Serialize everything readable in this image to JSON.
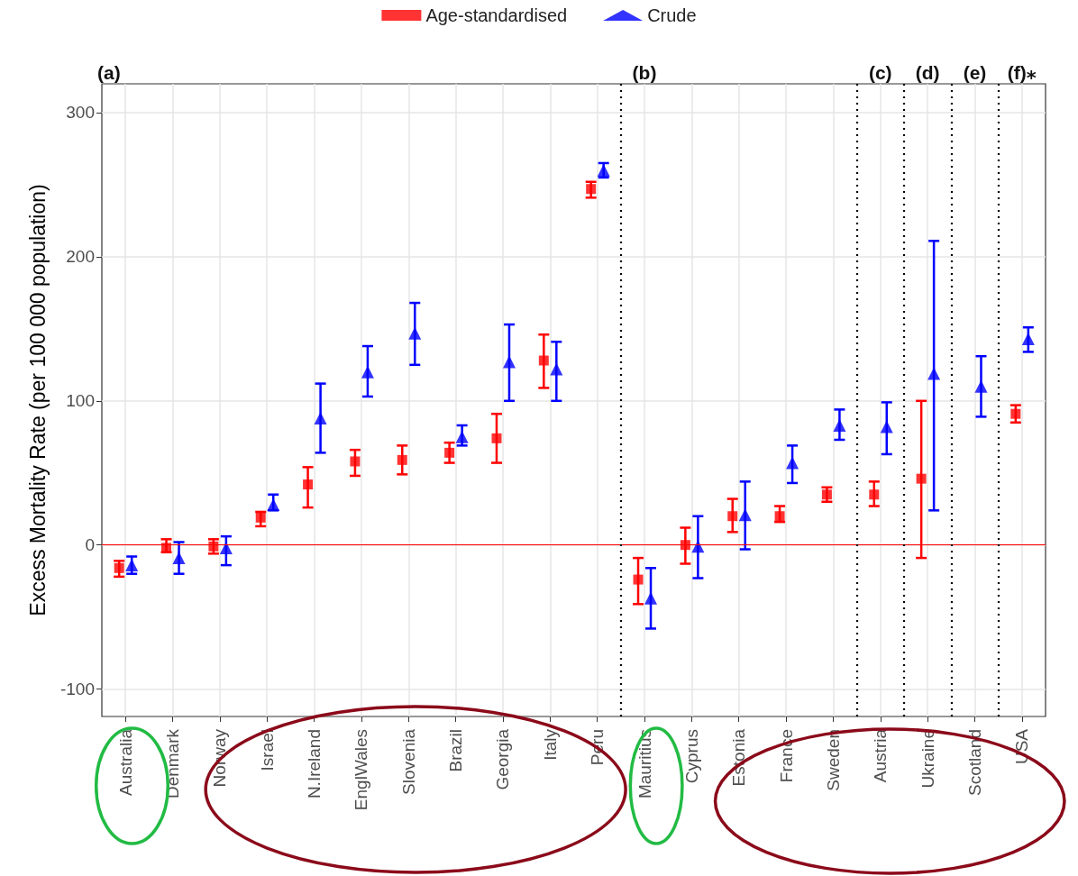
{
  "chart_data": {
    "type": "scatter",
    "ylabel": "Excess Mortality Rate (per 100 000 population)",
    "categories": [
      "Australia",
      "Denmark",
      "Norway",
      "Israel",
      "N.Ireland",
      "EnglWales",
      "Slovenia",
      "Brazil",
      "Georgia",
      "Italy",
      "Peru",
      "Mauritius",
      "Cyprus",
      "Estonia",
      "France",
      "Sweden",
      "Austria",
      "Ukraine",
      "Scotland",
      "USA"
    ],
    "series": [
      {
        "name": "Age-standardised",
        "color": "#ff0000",
        "marker": "square",
        "values": [
          -16,
          -2,
          -1,
          19,
          42,
          58,
          59,
          64,
          74,
          128,
          247,
          -24,
          0,
          20,
          20,
          35,
          35,
          46,
          null,
          91
        ],
        "errors": [
          [
            -22,
            -11
          ],
          [
            -5,
            4
          ],
          [
            -6,
            4
          ],
          [
            13,
            23
          ],
          [
            26,
            54
          ],
          [
            48,
            66
          ],
          [
            49,
            69
          ],
          [
            57,
            71
          ],
          [
            57,
            91
          ],
          [
            109,
            146
          ],
          [
            241,
            252
          ],
          [
            -41,
            -9
          ],
          [
            -13,
            12
          ],
          [
            9,
            32
          ],
          [
            16,
            27
          ],
          [
            30,
            40
          ],
          [
            27,
            44
          ],
          [
            -9,
            100
          ],
          null,
          [
            85,
            97
          ]
        ]
      },
      {
        "name": "Crude",
        "color": "#0000ff",
        "marker": "triangle",
        "values": [
          -14,
          -9,
          -2,
          28,
          88,
          120,
          147,
          75,
          127,
          122,
          260,
          -37,
          -1,
          21,
          57,
          83,
          82,
          119,
          110,
          143
        ],
        "errors": [
          [
            -20,
            -8
          ],
          [
            -20,
            2
          ],
          [
            -14,
            6
          ],
          [
            24,
            35
          ],
          [
            64,
            112
          ],
          [
            103,
            138
          ],
          [
            125,
            168
          ],
          [
            69,
            83
          ],
          [
            100,
            153
          ],
          [
            100,
            141
          ],
          [
            255,
            265
          ],
          [
            -58,
            -16
          ],
          [
            -23,
            20
          ],
          [
            -3,
            44
          ],
          [
            43,
            69
          ],
          [
            73,
            94
          ],
          [
            63,
            99
          ],
          [
            24,
            211
          ],
          [
            89,
            131
          ],
          [
            134,
            151
          ]
        ]
      }
    ],
    "ylim": [
      -119,
      320
    ],
    "yticks": [
      -100,
      0,
      100,
      200,
      300
    ],
    "grid": true,
    "legend": "top",
    "line_style": "solid",
    "ref_lines": [
      {
        "axis": "y",
        "value": 0,
        "color": "#ff0000",
        "line_style": "solid"
      }
    ],
    "annotations": [
      "(a)",
      "(b)",
      "(c)",
      "(d)",
      "(e)",
      "(f)⁎"
    ]
  }
}
